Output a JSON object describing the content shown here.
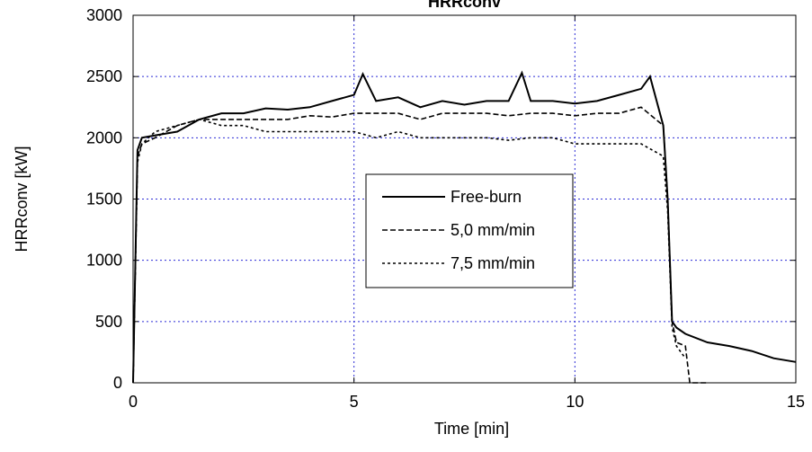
{
  "chart_data": {
    "type": "line",
    "title": "HRRconv",
    "xlabel": "Time [min]",
    "ylabel": "HRRconv [kW]",
    "xlim": [
      0,
      15
    ],
    "ylim": [
      0,
      3000
    ],
    "xticks": [
      0,
      5,
      10,
      15
    ],
    "yticks": [
      0,
      500,
      1000,
      1500,
      2000,
      2500,
      3000
    ],
    "grid": true,
    "legend_position": "center",
    "series": [
      {
        "name": "Free-burn",
        "style": "solid",
        "color": "#000000",
        "x": [
          0,
          0.1,
          0.2,
          0.5,
          1,
          1.5,
          2,
          2.5,
          3,
          3.5,
          4,
          4.5,
          5,
          5.2,
          5.5,
          6,
          6.5,
          7,
          7.5,
          8,
          8.5,
          8.8,
          9,
          9.5,
          10,
          10.5,
          11,
          11.5,
          11.7,
          12,
          12.1,
          12.2,
          12.3,
          12.5,
          13,
          13.5,
          14,
          14.5,
          15
        ],
        "y": [
          0,
          1900,
          2000,
          2020,
          2050,
          2150,
          2200,
          2200,
          2240,
          2230,
          2250,
          2300,
          2350,
          2520,
          2300,
          2330,
          2250,
          2300,
          2270,
          2300,
          2300,
          2530,
          2300,
          2300,
          2280,
          2300,
          2350,
          2400,
          2500,
          2100,
          1500,
          500,
          450,
          400,
          330,
          300,
          260,
          200,
          170
        ]
      },
      {
        "name": "5,0 mm/min",
        "style": "dashed",
        "color": "#000000",
        "x": [
          0,
          0.1,
          0.2,
          0.5,
          1,
          1.5,
          2,
          2.5,
          3,
          3.5,
          4,
          4.5,
          5,
          5.5,
          6,
          6.5,
          7,
          7.5,
          8,
          8.5,
          9,
          9.5,
          10,
          10.5,
          11,
          11.5,
          12,
          12.1,
          12.2,
          12.3,
          12.5,
          12.6,
          12.7,
          12.8,
          13
        ],
        "y": [
          0,
          1850,
          1950,
          2000,
          2100,
          2150,
          2150,
          2150,
          2150,
          2150,
          2180,
          2170,
          2200,
          2200,
          2200,
          2150,
          2200,
          2200,
          2200,
          2180,
          2200,
          2200,
          2180,
          2200,
          2200,
          2250,
          2100,
          1500,
          500,
          330,
          300,
          0,
          0,
          0,
          0
        ]
      },
      {
        "name": "7,5 mm/min",
        "style": "dotted",
        "color": "#000000",
        "x": [
          0,
          0.1,
          0.2,
          0.5,
          1,
          1.5,
          2,
          2.5,
          3,
          3.5,
          4,
          4.5,
          5,
          5.5,
          6,
          6.5,
          7,
          7.5,
          8,
          8.5,
          9,
          9.5,
          10,
          10.5,
          11,
          11.5,
          12,
          12.1,
          12.2,
          12.3,
          12.5
        ],
        "y": [
          0,
          1800,
          1950,
          2050,
          2100,
          2150,
          2100,
          2100,
          2050,
          2050,
          2050,
          2050,
          2050,
          2000,
          2050,
          2000,
          2000,
          2000,
          2000,
          1980,
          2000,
          2000,
          1950,
          1950,
          1950,
          1950,
          1850,
          1400,
          450,
          300,
          200
        ]
      }
    ]
  }
}
